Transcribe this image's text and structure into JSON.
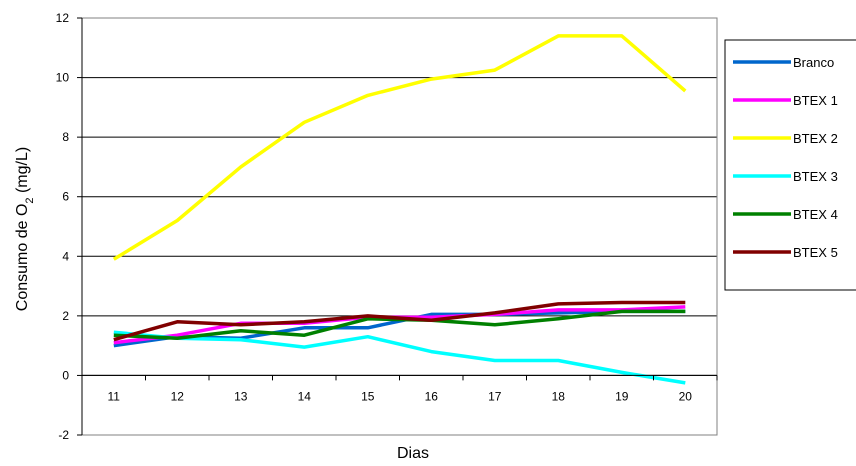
{
  "chart_data": {
    "type": "line",
    "xlabel": "Dias",
    "ylabel_main": "Consumo de O",
    "ylabel_sub": "2",
    "ylabel_tail": " (mg/L)",
    "ylim": [
      -2,
      12
    ],
    "yticks": [
      -2,
      0,
      2,
      4,
      6,
      8,
      10,
      12
    ],
    "categories": [
      "11",
      "12",
      "13",
      "14",
      "15",
      "16",
      "17",
      "18",
      "19",
      "20"
    ],
    "grid": "horizontal",
    "legend_position": "right",
    "series": [
      {
        "name": "Branco",
        "color": "#0066cc",
        "values": [
          1.0,
          1.3,
          1.25,
          1.6,
          1.6,
          2.05,
          2.05,
          2.1,
          2.15,
          2.15
        ]
      },
      {
        "name": "BTEX 1",
        "color": "#ff00ff",
        "values": [
          1.1,
          1.35,
          1.75,
          1.75,
          1.95,
          1.95,
          2.05,
          2.2,
          2.2,
          2.3
        ]
      },
      {
        "name": "BTEX 2",
        "color": "#ffff00",
        "values": [
          3.9,
          5.2,
          7.0,
          8.5,
          9.4,
          9.95,
          10.25,
          11.4,
          11.4,
          9.55
        ]
      },
      {
        "name": "BTEX 3",
        "color": "#00ffff",
        "values": [
          1.45,
          1.25,
          1.2,
          0.95,
          1.3,
          0.8,
          0.5,
          0.5,
          0.1,
          -0.25
        ]
      },
      {
        "name": "BTEX 4",
        "color": "#008000",
        "values": [
          1.35,
          1.25,
          1.5,
          1.35,
          1.9,
          1.85,
          1.7,
          1.9,
          2.15,
          2.15
        ]
      },
      {
        "name": "BTEX 5",
        "color": "#800000",
        "values": [
          1.2,
          1.8,
          1.7,
          1.8,
          2.0,
          1.85,
          2.1,
          2.4,
          2.45,
          2.45
        ]
      }
    ]
  }
}
